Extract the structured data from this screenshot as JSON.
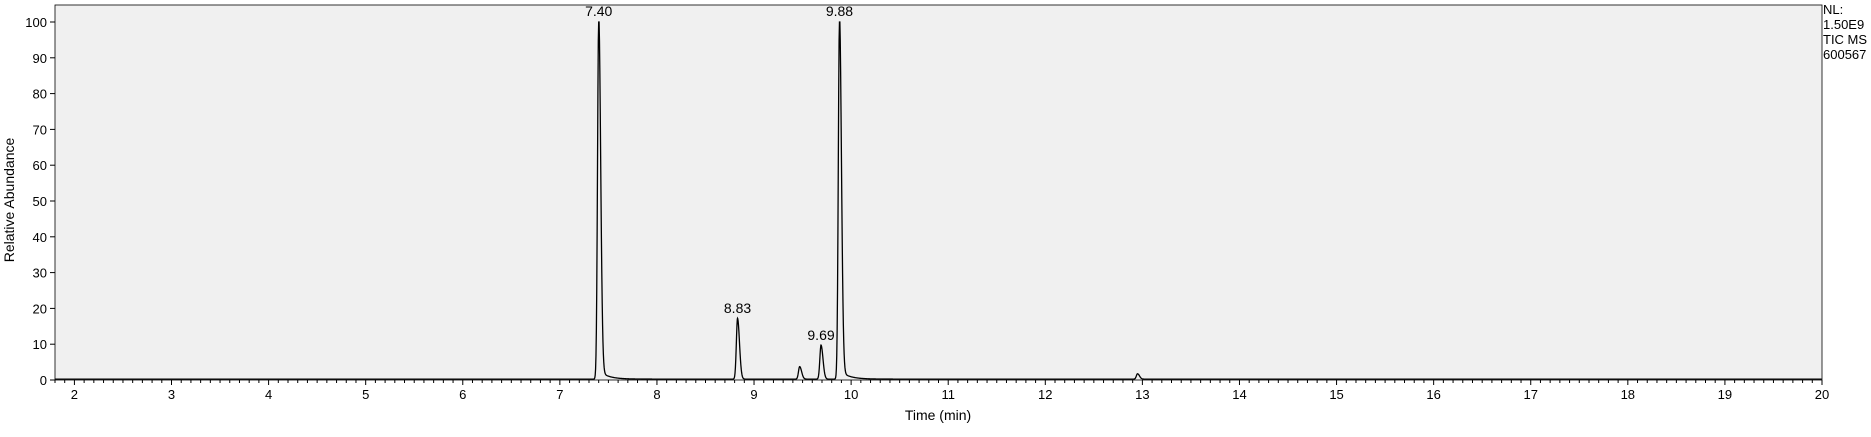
{
  "chart_data": {
    "type": "line",
    "title": "",
    "xlabel": "Time (min)",
    "ylabel": "Relative Abundance",
    "xlim": [
      1.8,
      20
    ],
    "ylim": [
      0,
      100
    ],
    "x_ticks": [
      2,
      3,
      4,
      5,
      6,
      7,
      8,
      9,
      10,
      11,
      12,
      13,
      14,
      15,
      16,
      17,
      18,
      19,
      20
    ],
    "y_ticks": [
      0,
      10,
      20,
      30,
      40,
      50,
      60,
      70,
      80,
      90,
      100
    ],
    "grid": false,
    "plot_background": "#f0f0f0",
    "trace_color": "#000000",
    "peaks": [
      {
        "label": "7.40",
        "x": 7.4,
        "y": 100
      },
      {
        "label": "8.83",
        "x": 8.83,
        "y": 17
      },
      {
        "label": "9.69",
        "x": 9.69,
        "y": 9.5
      },
      {
        "label": "9.88",
        "x": 9.88,
        "y": 100
      }
    ],
    "minor_peaks": [
      {
        "x": 9.47,
        "y": 3.5
      },
      {
        "x": 12.95,
        "y": 1.5
      }
    ],
    "info": [
      "NL:",
      "1.50E9",
      "TIC  MS",
      "600567"
    ]
  }
}
